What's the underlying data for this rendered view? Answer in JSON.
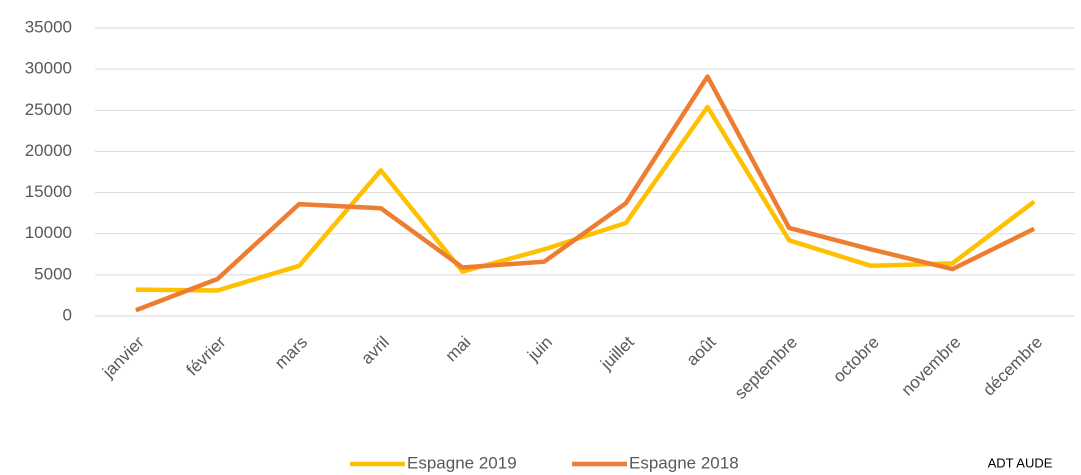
{
  "chart_data": {
    "type": "line",
    "categories": [
      "janvier",
      "février",
      "mars",
      "avril",
      "mai",
      "juin",
      "juillet",
      "août",
      "septembre",
      "octobre",
      "novembre",
      "décembre"
    ],
    "series": [
      {
        "name": "Espagne 2019",
        "color": "#ffc000",
        "values": [
          3200,
          3100,
          6100,
          17700,
          5400,
          8100,
          11300,
          25400,
          9200,
          6100,
          6400,
          13900
        ]
      },
      {
        "name": "Espagne 2018",
        "color": "#ed7d31",
        "values": [
          700,
          4500,
          13600,
          13100,
          5900,
          6600,
          13700,
          29100,
          10700,
          8100,
          5700,
          10600
        ]
      }
    ],
    "ylim": [
      0,
      35000
    ],
    "yticks": [
      0,
      5000,
      10000,
      15000,
      20000,
      25000,
      30000,
      35000
    ],
    "grid": true,
    "legend": "bottom",
    "annotation": "ADT AUDE"
  }
}
